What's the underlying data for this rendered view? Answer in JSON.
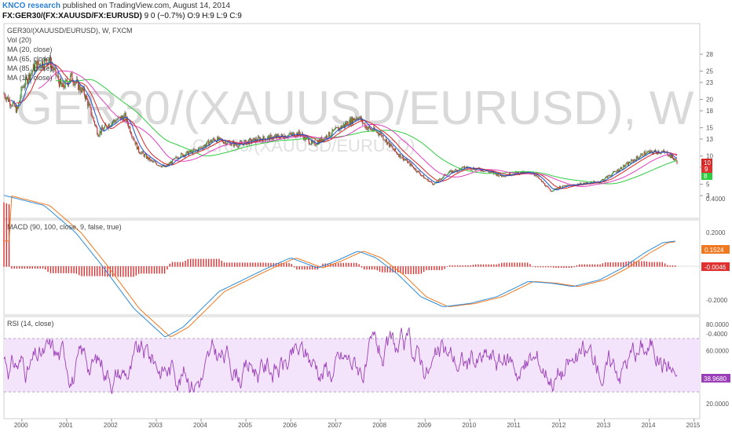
{
  "header": {
    "brand": "KNCO research",
    "published": "published on TradingView.com, August 14, 2014",
    "symbol": "FX:GER30/(FX:XAUUSD/FX:EURUSD)",
    "quote": "9 0 (−0.7%) O:9 H:9 L:9 C:9"
  },
  "price_panel": {
    "title": "GER30/(XAUUSD/EURUSD), W, FXCM",
    "watermark": "GER30/(XAUUSD/EURUSD), W",
    "watermark_small": "GER30/(XAUUSD/EURUSD)",
    "indicators": [
      "Vol (20)",
      "MA (20, close)",
      "MA (65, close)",
      "MA (85, close)",
      "MA (10, close)"
    ],
    "y_ticks": [
      "28",
      "25",
      "23",
      "20",
      "18",
      "15",
      "13",
      "10",
      "8",
      "5",
      "3"
    ],
    "last_label": "9",
    "ma_label_top": "10",
    "ma_label_low": "8"
  },
  "macd_panel": {
    "title": "MACD (90, 100, close, 9, false, true)",
    "y_ticks": [
      "0.4000",
      "0.2000",
      "0.0000",
      "-0.2000",
      "-0.4000"
    ],
    "macd_value": "0.1524",
    "hist_value": "-0.0046"
  },
  "rsi_panel": {
    "title": "RSI (14, close)",
    "y_ticks": [
      "80.0000",
      "60.0000",
      "40.0000",
      "20.0000"
    ],
    "value": "38.9680"
  },
  "x_axis": {
    "labels": [
      "2000",
      "2001",
      "2002",
      "2003",
      "2004",
      "2005",
      "2006",
      "2007",
      "2008",
      "2009",
      "2010",
      "2011",
      "2012",
      "2013",
      "2014",
      "2015"
    ]
  },
  "colors": {
    "up": "#2ca02c",
    "down": "#e03030",
    "ma10": "#1f4fcf",
    "ma20": "#d62728",
    "ma65": "#e040c0",
    "ma85": "#2ecc40",
    "macd": "#2e8bd8",
    "signal": "#f07820",
    "rsi": "#9b3fb8",
    "rsi_band": "#f3e4fb"
  }
}
